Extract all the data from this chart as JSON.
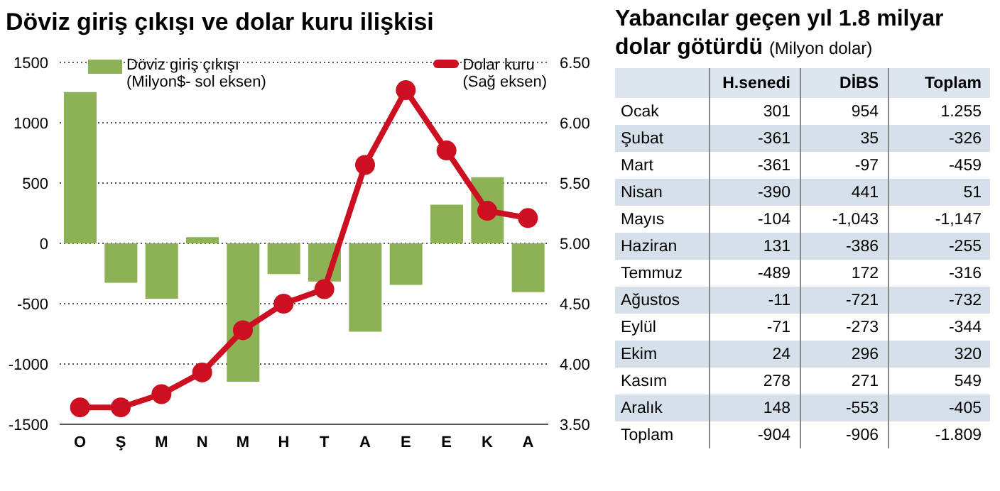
{
  "chart_data": [
    {
      "type": "bar",
      "title": "Döviz giriş çıkışı ve dolar kuru ilişkisi",
      "categories": [
        "O",
        "Ş",
        "M",
        "N",
        "M",
        "H",
        "T",
        "A",
        "E",
        "E",
        "K",
        "A"
      ],
      "series": [
        {
          "name": "Döviz giriş çıkışı\n(Milyon$- sol eksen)",
          "type": "bar",
          "color": "#8db255",
          "values": [
            1255,
            -326,
            -459,
            51,
            -1147,
            -255,
            -316,
            -732,
            -344,
            320,
            549,
            -405
          ]
        },
        {
          "name": "Dolar kuru\n(Sağ eksen)",
          "type": "line",
          "axis": "y2",
          "color": "#cc1021",
          "values": [
            3.64,
            3.64,
            3.75,
            3.93,
            4.28,
            4.5,
            4.62,
            5.65,
            6.27,
            5.77,
            5.27,
            5.21
          ]
        }
      ],
      "ylim": [
        -1500,
        1500
      ],
      "yticks": [
        -1500,
        -1000,
        -500,
        0,
        500,
        1000,
        1500
      ],
      "y2lim": [
        3.5,
        6.5
      ],
      "y2ticks": [
        {
          "value": 3.5,
          "label": "3.50"
        },
        {
          "value": 4,
          "label": "4.00"
        },
        {
          "value": 4.5,
          "label": "4.50"
        },
        {
          "value": 5,
          "label": "5.00"
        },
        {
          "value": 5.5,
          "label": "5.50"
        },
        {
          "value": 6,
          "label": "6.00"
        },
        {
          "value": 6.5,
          "label": "6.50"
        }
      ],
      "grid": "y",
      "legend": "top",
      "marker": "circle",
      "line_style": "solid"
    },
    {
      "type": "other",
      "title": "Yabancılar geçen yıl 1.8 milyar dolar götürdü",
      "subtitle": "(Milyon dolar)",
      "categories": [
        "H.senedi",
        "DİBS",
        "Toplam"
      ],
      "y_categories": [
        "Ocak",
        "Şubat",
        "Mart",
        "Nisan",
        "Mayıs",
        "Haziran",
        "Temmuz",
        "Ağustos",
        "Eylül",
        "Ekim",
        "Kasım",
        "Aralık",
        "Toplam"
      ],
      "cell_labels": [
        [
          "301",
          "954",
          "1.255"
        ],
        [
          "-361",
          "35",
          "-326"
        ],
        [
          "-361",
          "-97",
          "-459"
        ],
        [
          "-390",
          "441",
          "51"
        ],
        [
          "-104",
          "-1,043",
          "-1,147"
        ],
        [
          "131",
          "-386",
          "-255"
        ],
        [
          "-489",
          "172",
          "-316"
        ],
        [
          "-11",
          "-721",
          "-732"
        ],
        [
          "-71",
          "-273",
          "-344"
        ],
        [
          "24",
          "296",
          "320"
        ],
        [
          "278",
          "271",
          "549"
        ],
        [
          "148",
          "-553",
          "-405"
        ],
        [
          "-904",
          "-906",
          "-1.809"
        ]
      ]
    }
  ]
}
